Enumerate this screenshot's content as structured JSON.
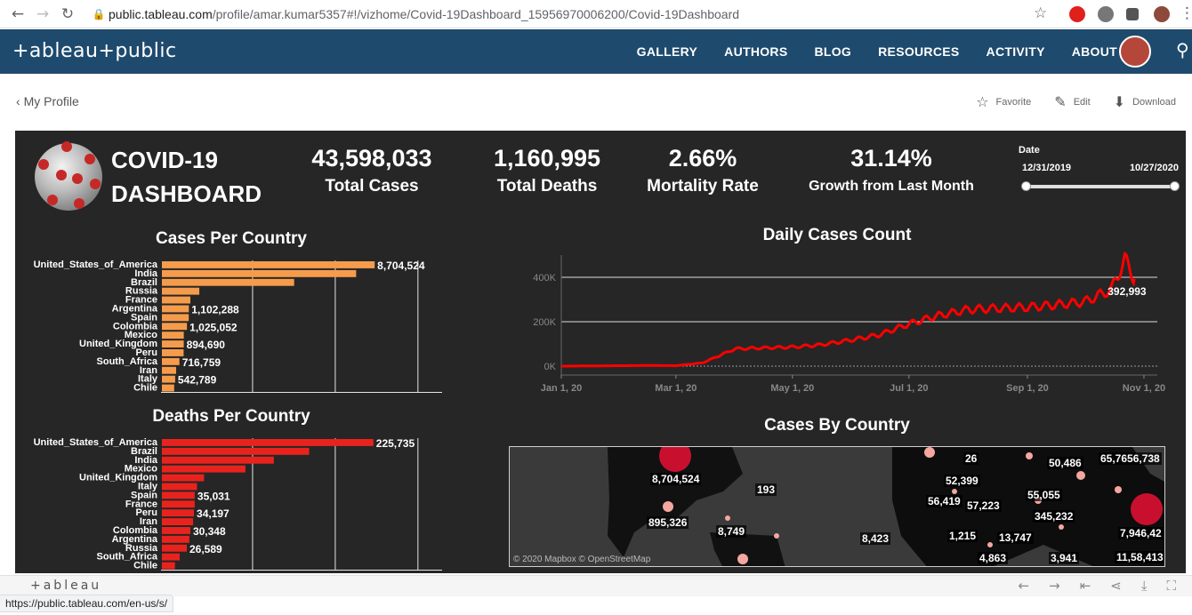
{
  "browser": {
    "url_host": "public.tableau.com",
    "url_path": "/profile/amar.kumar5357#!/vizhome/Covid-19Dashboard_15956970006200/Covid-19Dashboard",
    "status_url": "https://public.tableau.com/en-us/s/"
  },
  "header": {
    "logo": "+ableau+public",
    "nav": [
      "GALLERY",
      "AUTHORS",
      "BLOG",
      "RESOURCES",
      "ACTIVITY",
      "ABOUT"
    ]
  },
  "profile": {
    "back_label": "My Profile",
    "favorite": "Favorite",
    "edit": "Edit",
    "download": "Download"
  },
  "dashboard": {
    "title_line1": "COVID-19",
    "title_line2": "DASHBOARD",
    "kpis": [
      {
        "value": "43,598,033",
        "label": "Total Cases"
      },
      {
        "value": "1,160,995",
        "label": "Total Deaths"
      },
      {
        "value": "2.66%",
        "label": "Mortality Rate"
      },
      {
        "value": "31.14%",
        "label": "Growth from Last Month"
      }
    ],
    "date_label": "Date",
    "date_start": "12/31/2019",
    "date_end": "10/27/2020",
    "map_title": "Cases By Country",
    "map_attribution": "© 2020 Mapbox © OpenStreetMap",
    "map_labels": [
      "8,704,524",
      "193",
      "895,326",
      "8,749",
      "26",
      "50,486",
      "65,7656,738",
      "52,399",
      "56,419",
      "57,223",
      "55,055",
      "345,232",
      "8,423",
      "1,215",
      "13,747",
      "4,863",
      "3,941",
      "7,946,42",
      "11,58,413"
    ],
    "colors": {
      "cases_bar": "#f59c4c",
      "deaths_bar": "#e8231e",
      "line": "#ff0000",
      "bubble": "#c8102e",
      "bubble_light": "#f4a7a0"
    }
  },
  "toolbar": {
    "logo": "+ableau",
    "icons": [
      "undo-icon",
      "redo-icon",
      "revert-icon",
      "share-icon",
      "download-icon",
      "fullscreen-icon"
    ]
  },
  "chart_data": [
    {
      "type": "bar",
      "title": "Cases Per Country",
      "orientation": "horizontal",
      "categories": [
        "United_States_of_America",
        "India",
        "Brazil",
        "Russia",
        "France",
        "Argentina",
        "Spain",
        "Colombia",
        "Mexico",
        "United_Kingdom",
        "Peru",
        "South_Africa",
        "Iran",
        "Italy",
        "Chile"
      ],
      "values": [
        8704524,
        7946429,
        5409854,
        1531179,
        1165278,
        1102288,
        1098320,
        1025052,
        895326,
        894690,
        888715,
        716759,
        581824,
        542789,
        502063
      ],
      "data_labels": [
        "8,704,524",
        "",
        "",
        "",
        "",
        "1,102,288",
        "",
        "1,025,052",
        "",
        "894,690",
        "",
        "716,759",
        "",
        "542,789",
        ""
      ],
      "xlim": [
        0,
        11500000
      ]
    },
    {
      "type": "bar",
      "title": "Deaths Per Country",
      "orientation": "horizontal",
      "categories": [
        "United_States_of_America",
        "Brazil",
        "India",
        "Mexico",
        "United_Kingdom",
        "Italy",
        "Spain",
        "France",
        "Peru",
        "Iran",
        "Colombia",
        "Argentina",
        "Russia",
        "South_Africa",
        "Chile"
      ],
      "values": [
        225735,
        157134,
        119502,
        89171,
        44998,
        37479,
        35031,
        35018,
        34197,
        33299,
        30348,
        29301,
        26589,
        18968,
        13944
      ],
      "data_labels": [
        "225,735",
        "",
        "",
        "",
        "",
        "",
        "35,031",
        "",
        "34,197",
        "",
        "30,348",
        "",
        "26,589",
        "",
        ""
      ],
      "xlim": [
        0,
        300000
      ]
    },
    {
      "type": "line",
      "title": "Daily Cases Count",
      "x_ticks": [
        "Jan 1, 20",
        "Mar 1, 20",
        "May 1, 20",
        "Jul 1, 20",
        "Sep 1, 20",
        "Nov 1, 20"
      ],
      "y_ticks": [
        "0K",
        "200K",
        "400K"
      ],
      "ylim": [
        0,
        500000
      ],
      "end_label": "392,993",
      "series": [
        {
          "x": [
            "2020-01-01",
            "2020-02-01",
            "2020-02-15",
            "2020-03-01",
            "2020-03-15",
            "2020-04-01",
            "2020-04-15",
            "2020-05-01",
            "2020-05-15",
            "2020-06-01",
            "2020-06-15",
            "2020-07-01",
            "2020-07-15",
            "2020-08-01",
            "2020-08-15",
            "2020-09-01",
            "2020-09-15",
            "2020-10-01",
            "2020-10-15",
            "2020-10-22",
            "2020-10-27"
          ],
          "values": [
            0,
            2000,
            3000,
            2000,
            15000,
            78000,
            82000,
            86000,
            95000,
            118000,
            140000,
            190000,
            225000,
            255000,
            260000,
            265000,
            275000,
            290000,
            345000,
            480000,
            392993
          ]
        }
      ]
    }
  ]
}
